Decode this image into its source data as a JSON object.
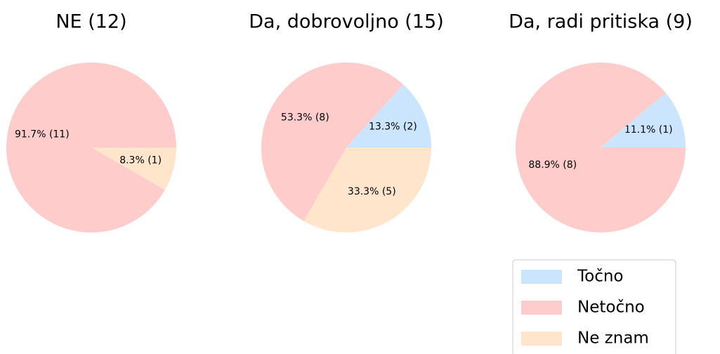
{
  "chart_data": [
    {
      "type": "pie",
      "title": "NE (12)",
      "categories": [
        "Točno",
        "Netočno",
        "Ne znam"
      ],
      "colors": [
        "#cce5ff",
        "#ffcccc",
        "#ffe5cc"
      ],
      "values": [
        0,
        91.7,
        8.3
      ],
      "value_labels": [
        null,
        "91.7% (11)",
        "8.3% (1)"
      ]
    },
    {
      "type": "pie",
      "title": "Da, dobrovoljno (15)",
      "categories": [
        "Točno",
        "Netočno",
        "Ne znam"
      ],
      "colors": [
        "#cce5ff",
        "#ffcccc",
        "#ffe5cc"
      ],
      "values": [
        13.3,
        53.3,
        33.3
      ],
      "value_labels": [
        "13.3% (2)",
        "53.3% (8)",
        "33.3% (5)"
      ]
    },
    {
      "type": "pie",
      "title": "Da, radi pritiska (9)",
      "categories": [
        "Točno",
        "Netočno",
        "Ne znam"
      ],
      "colors": [
        "#cce5ff",
        "#ffcccc",
        "#ffe5cc"
      ],
      "values": [
        11.1,
        88.9,
        0
      ],
      "value_labels": [
        "11.1% (1)",
        "88.9% (8)",
        null
      ],
      "legend": "lower right"
    }
  ]
}
